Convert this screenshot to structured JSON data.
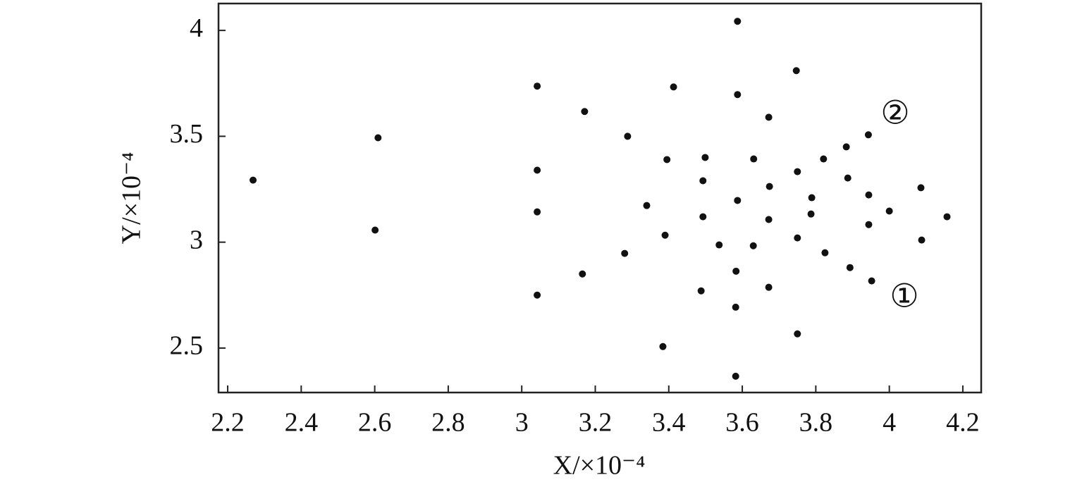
{
  "chart_data": {
    "type": "scatter",
    "x_label": "X/×10⁻⁴",
    "y_label": "Y/×10⁻⁴",
    "xlim": [
      2.175,
      4.25
    ],
    "ylim": [
      2.29,
      4.127
    ],
    "xticks": [
      2.2,
      2.4,
      2.6,
      2.8,
      3,
      3.2,
      3.4,
      3.6,
      3.8,
      4,
      4.2
    ],
    "yticks": [
      2.5,
      3,
      3.5,
      4
    ],
    "grid": false,
    "color": "#111111",
    "x": [
      2.269,
      2.601,
      2.609,
      3.042,
      3.042,
      3.042,
      3.042,
      3.171,
      3.165,
      3.288,
      3.28,
      3.34,
      3.413,
      3.395,
      3.39,
      3.384,
      3.499,
      3.493,
      3.493,
      3.488,
      3.537,
      3.587,
      3.587,
      3.587,
      3.583,
      3.582,
      3.582,
      3.631,
      3.63,
      3.672,
      3.674,
      3.672,
      3.672,
      3.747,
      3.75,
      3.75,
      3.75,
      3.789,
      3.787,
      3.821,
      3.825,
      3.883,
      3.887,
      3.893,
      3.943,
      3.944,
      3.944,
      3.952,
      4.0,
      4.086,
      4.088,
      4.157
    ],
    "values": [
      3.293,
      3.057,
      3.493,
      3.737,
      3.34,
      3.143,
      2.75,
      3.617,
      2.85,
      3.5,
      2.947,
      3.173,
      3.733,
      3.39,
      3.033,
      2.507,
      3.4,
      3.29,
      3.12,
      2.77,
      2.987,
      4.043,
      3.697,
      3.197,
      2.863,
      2.693,
      2.367,
      3.393,
      2.983,
      3.59,
      3.263,
      3.107,
      2.787,
      3.81,
      3.333,
      3.02,
      2.567,
      3.21,
      3.133,
      3.393,
      2.95,
      3.45,
      3.303,
      2.88,
      3.507,
      3.223,
      3.083,
      2.817,
      3.147,
      3.257,
      3.01,
      3.12
    ],
    "annotations": [
      "②",
      "①"
    ]
  }
}
